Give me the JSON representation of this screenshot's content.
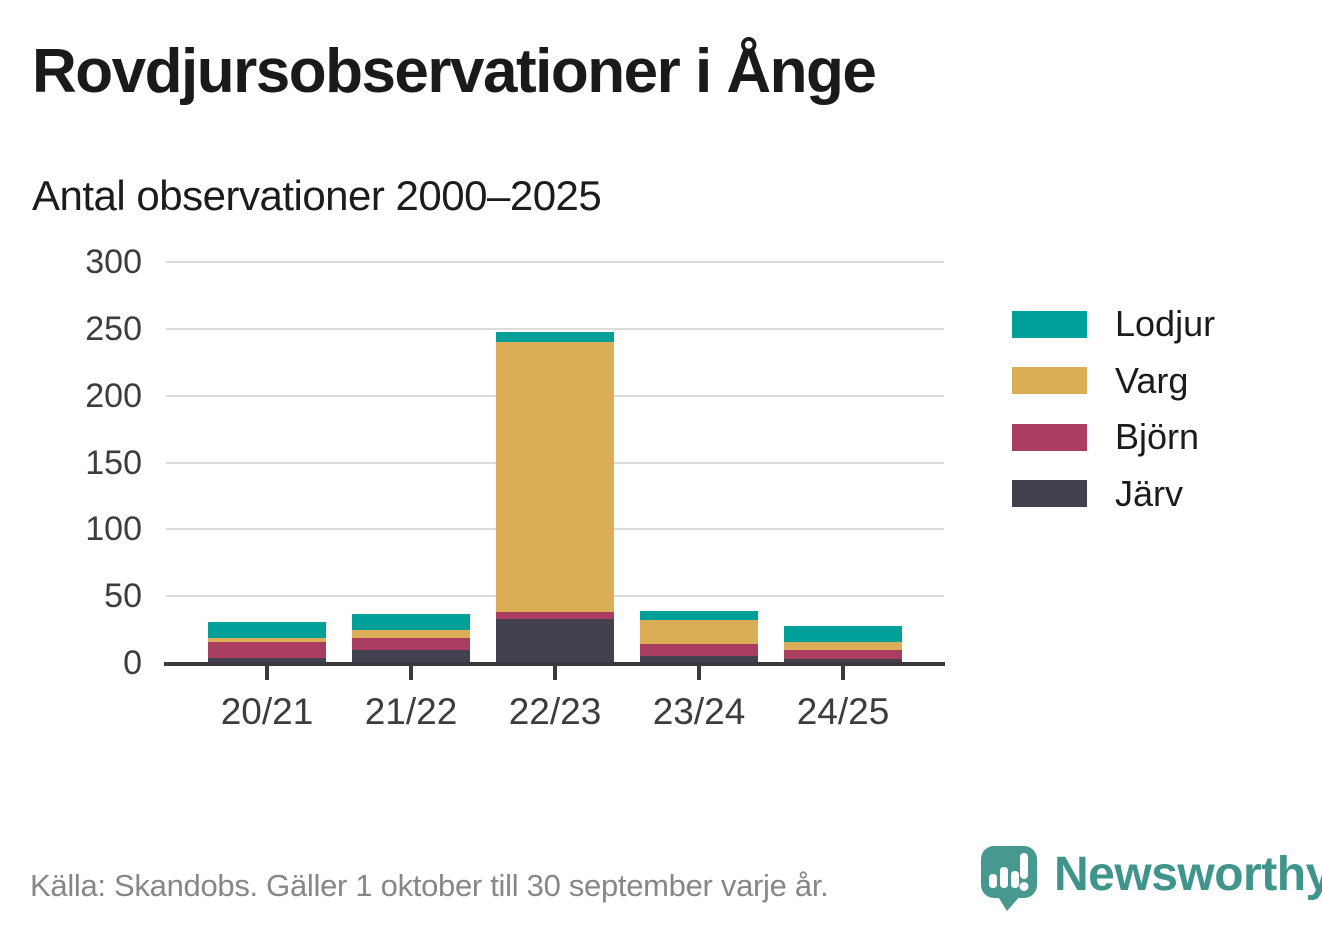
{
  "header": {
    "title": "Rovdjursobservationer i Ånge",
    "subtitle": "Antal observationer 2000–2025"
  },
  "chart_data": {
    "type": "bar",
    "stacked": true,
    "title": "Rovdjursobservationer i Ånge",
    "subtitle": "Antal observationer 2000–2025",
    "categories": [
      "20/21",
      "21/22",
      "22/23",
      "23/24",
      "24/25"
    ],
    "series": [
      {
        "name": "Järv",
        "color": "#434050",
        "values": [
          4,
          10,
          33,
          5,
          3
        ]
      },
      {
        "name": "Björn",
        "color": "#a93e61",
        "values": [
          12,
          9,
          5,
          9,
          7
        ]
      },
      {
        "name": "Varg",
        "color": "#dbad56",
        "values": [
          3,
          6,
          202,
          18,
          6
        ]
      },
      {
        "name": "Lodjur",
        "color": "#00a09a",
        "values": [
          12,
          12,
          8,
          7,
          12
        ]
      }
    ],
    "totals": [
      31,
      37,
      248,
      39,
      28
    ],
    "xlabel": "",
    "ylabel": "",
    "ylim": [
      0,
      300
    ],
    "yticks": [
      0,
      50,
      100,
      150,
      200,
      250,
      300
    ],
    "grid": "horizontal",
    "legend_position": "right",
    "legend_order": [
      "Lodjur",
      "Varg",
      "Björn",
      "Järv"
    ]
  },
  "footer": {
    "source": "Källa: Skandobs. Gäller 1 oktober till 30 september varje år.",
    "brand": "Newsworthy"
  },
  "colors": {
    "lodjur_teal": "#00a09a",
    "varg_gold": "#dbad56",
    "bjorn_maroon": "#a93e61",
    "jarv_dark": "#434050",
    "axis": "#3b3842",
    "grid": "#dbdbdb",
    "brand_teal": "#3f948b",
    "title_text": "#1a1a1a",
    "tick_text": "#3d3d3d",
    "source_text": "#85878b"
  }
}
